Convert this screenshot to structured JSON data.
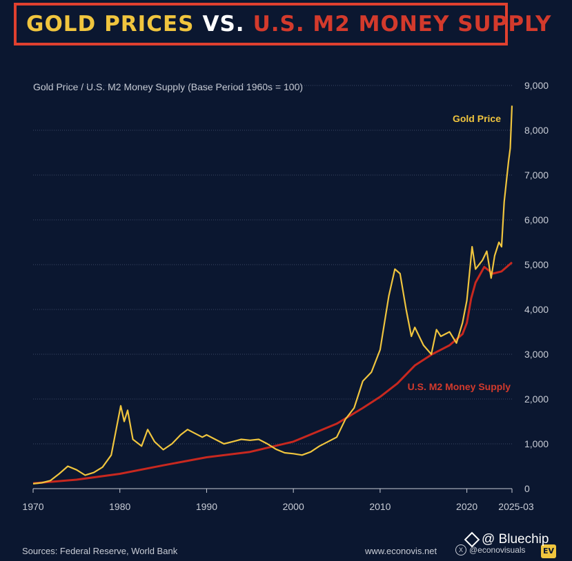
{
  "title": {
    "part1": "GOLD PRICES",
    "part2": "VS.",
    "part3": "U.S. M2 MONEY SUPPLY"
  },
  "colors": {
    "background": "#0b1730",
    "gold": "#f0c53e",
    "m2": "#c8281f",
    "title_border": "#e0402f",
    "text": "#c9cdd6"
  },
  "chart_data": {
    "type": "line",
    "subtitle": "Gold Price / U.S. M2 Money Supply (Base Period 1960s = 100)",
    "x_ticks": [
      "1970",
      "1980",
      "1990",
      "2000",
      "2010",
      "2020",
      "2025-03"
    ],
    "y_ticks": [
      "0",
      "1,000",
      "2,000",
      "3,000",
      "4,000",
      "5,000",
      "6,000",
      "7,000",
      "8,000",
      "9,000"
    ],
    "ylim": [
      0,
      9000
    ],
    "xlim": [
      1970,
      2025.2
    ],
    "grid": true,
    "y_axis_side": "right",
    "series": [
      {
        "name": "Gold Price",
        "color": "#f0c53e",
        "label_position": "upper-right",
        "points": [
          [
            1970,
            110
          ],
          [
            1971,
            130
          ],
          [
            1972,
            180
          ],
          [
            1973,
            330
          ],
          [
            1974,
            500
          ],
          [
            1975,
            420
          ],
          [
            1976,
            300
          ],
          [
            1977,
            360
          ],
          [
            1978,
            480
          ],
          [
            1979,
            750
          ],
          [
            1980.1,
            1850
          ],
          [
            1980.5,
            1500
          ],
          [
            1980.9,
            1750
          ],
          [
            1981.5,
            1100
          ],
          [
            1982.5,
            950
          ],
          [
            1983.2,
            1320
          ],
          [
            1984,
            1050
          ],
          [
            1985,
            870
          ],
          [
            1986,
            1000
          ],
          [
            1987,
            1200
          ],
          [
            1987.8,
            1320
          ],
          [
            1988.5,
            1250
          ],
          [
            1989.5,
            1150
          ],
          [
            1990,
            1200
          ],
          [
            1991,
            1100
          ],
          [
            1992,
            1000
          ],
          [
            1993,
            1050
          ],
          [
            1994,
            1100
          ],
          [
            1995,
            1080
          ],
          [
            1996,
            1100
          ],
          [
            1997,
            1000
          ],
          [
            1998,
            880
          ],
          [
            1999,
            800
          ],
          [
            2000,
            780
          ],
          [
            2001,
            750
          ],
          [
            2002,
            820
          ],
          [
            2003,
            950
          ],
          [
            2004,
            1050
          ],
          [
            2005,
            1150
          ],
          [
            2006,
            1550
          ],
          [
            2007,
            1800
          ],
          [
            2008,
            2400
          ],
          [
            2009,
            2600
          ],
          [
            2010,
            3100
          ],
          [
            2011,
            4300
          ],
          [
            2011.7,
            4900
          ],
          [
            2012.3,
            4800
          ],
          [
            2013,
            4000
          ],
          [
            2013.6,
            3400
          ],
          [
            2014,
            3600
          ],
          [
            2015,
            3200
          ],
          [
            2015.9,
            3000
          ],
          [
            2016.5,
            3550
          ],
          [
            2017,
            3400
          ],
          [
            2018,
            3500
          ],
          [
            2018.8,
            3250
          ],
          [
            2019.5,
            3700
          ],
          [
            2020,
            4200
          ],
          [
            2020.6,
            5400
          ],
          [
            2021,
            4900
          ],
          [
            2021.8,
            5100
          ],
          [
            2022.3,
            5300
          ],
          [
            2022.8,
            4700
          ],
          [
            2023.2,
            5200
          ],
          [
            2023.7,
            5500
          ],
          [
            2024,
            5400
          ],
          [
            2024.3,
            6400
          ],
          [
            2024.8,
            7300
          ],
          [
            2025,
            7600
          ],
          [
            2025.2,
            8550
          ]
        ]
      },
      {
        "name": "U.S. M2 Money Supply",
        "color": "#c8281f",
        "label_position": "right",
        "points": [
          [
            1970,
            120
          ],
          [
            1975,
            200
          ],
          [
            1980,
            330
          ],
          [
            1985,
            520
          ],
          [
            1990,
            700
          ],
          [
            1995,
            820
          ],
          [
            2000,
            1050
          ],
          [
            2005,
            1450
          ],
          [
            2008,
            1800
          ],
          [
            2010,
            2050
          ],
          [
            2012,
            2350
          ],
          [
            2014,
            2750
          ],
          [
            2016,
            3000
          ],
          [
            2018,
            3200
          ],
          [
            2019.5,
            3450
          ],
          [
            2020,
            3700
          ],
          [
            2020.5,
            4250
          ],
          [
            2021,
            4600
          ],
          [
            2022,
            4950
          ],
          [
            2023,
            4800
          ],
          [
            2024,
            4850
          ],
          [
            2025.2,
            5050
          ]
        ]
      }
    ]
  },
  "footer": {
    "source": "Sources: Federal Reserve, World Bank",
    "site": "www.econovis.net",
    "handle": "@econovisuals",
    "x_icon_label": "X",
    "logo_text": "EV"
  },
  "watermark": {
    "text": "@ Bluechip"
  }
}
